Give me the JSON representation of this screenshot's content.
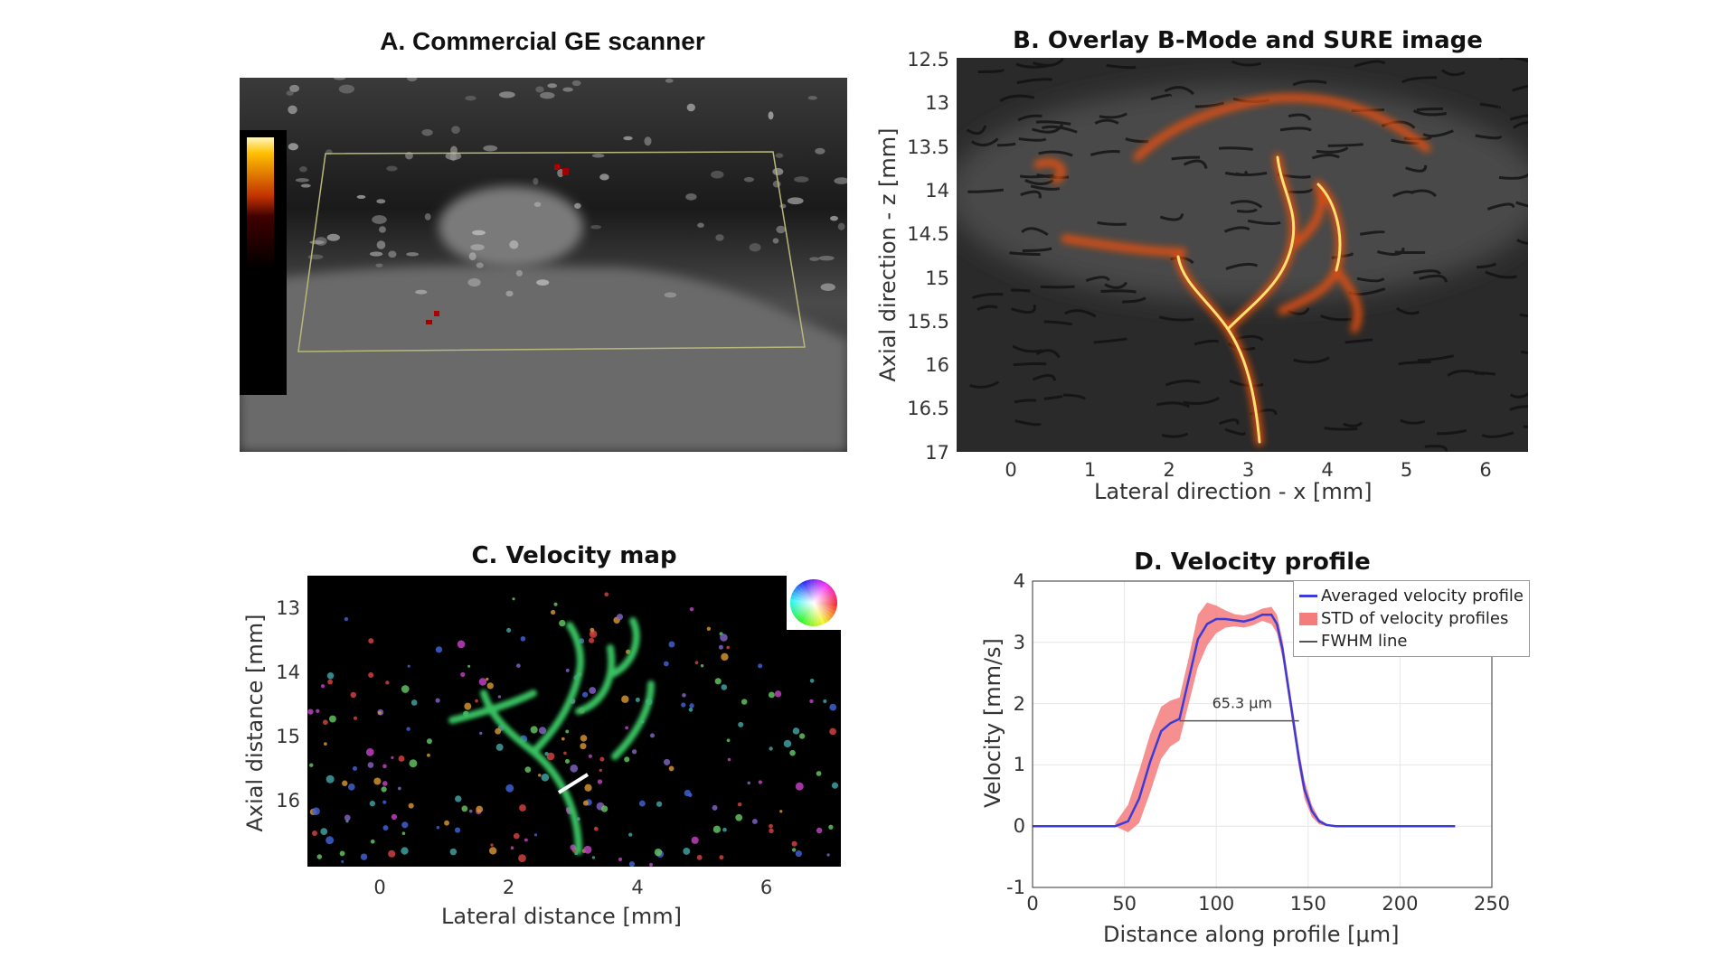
{
  "panel_a": {
    "title": "A. Commercial GE scanner"
  },
  "panel_b": {
    "title": "B. Overlay B-Mode and SURE image",
    "xlabel": "Lateral direction - x [mm]",
    "ylabel": "Axial direction - z [mm]",
    "x_ticks": [
      "0",
      "1",
      "2",
      "3",
      "4",
      "5",
      "6"
    ],
    "y_ticks": [
      "12.5",
      "13",
      "13.5",
      "14",
      "14.5",
      "15",
      "15.5",
      "16",
      "16.5",
      "17"
    ]
  },
  "panel_c": {
    "title": "C. Velocity map",
    "xlabel": "Lateral distance [mm]",
    "ylabel": "Axial distance [mm]",
    "x_ticks": [
      "0",
      "2",
      "4",
      "6"
    ],
    "y_ticks": [
      "13",
      "14",
      "15",
      "16"
    ]
  },
  "chart_data": {
    "type": "line",
    "title": "D. Velocity profile",
    "xlabel": "Distance along profile [μm]",
    "ylabel": "Velocity [mm/s]",
    "xlim": [
      0,
      250
    ],
    "ylim": [
      -1,
      4
    ],
    "x_ticks": [
      "0",
      "50",
      "100",
      "150",
      "200",
      "250"
    ],
    "y_ticks": [
      "-1",
      "0",
      "1",
      "2",
      "3",
      "4"
    ],
    "grid": true,
    "legend_position": "top-right",
    "annotation": "65.3 μm",
    "fwhm": {
      "x_start": 80,
      "x_end": 145,
      "y": 1.72
    },
    "series": [
      {
        "name": "Averaged velocity profile",
        "color": "#3b3bd6",
        "x": [
          0,
          45,
          52,
          58,
          64,
          70,
          75,
          80,
          85,
          90,
          95,
          100,
          105,
          110,
          115,
          120,
          125,
          130,
          133,
          136,
          139,
          142,
          145,
          148,
          152,
          156,
          160,
          165,
          230
        ],
        "y": [
          0,
          0,
          0.08,
          0.45,
          1.05,
          1.55,
          1.68,
          1.75,
          2.4,
          3.05,
          3.3,
          3.38,
          3.38,
          3.36,
          3.34,
          3.38,
          3.45,
          3.45,
          3.3,
          2.9,
          2.3,
          1.7,
          1.1,
          0.6,
          0.25,
          0.08,
          0.02,
          0,
          0
        ]
      },
      {
        "name": "STD of velocity profiles",
        "color": "#f47c7c",
        "x": [
          45,
          52,
          58,
          64,
          70,
          75,
          80,
          85,
          90,
          95,
          100,
          105,
          110,
          115,
          120,
          125,
          130,
          133,
          136,
          139,
          142,
          145,
          148,
          152,
          156,
          160,
          165
        ],
        "upper": [
          0.05,
          0.35,
          0.9,
          1.5,
          1.95,
          2.05,
          2.1,
          2.75,
          3.45,
          3.65,
          3.6,
          3.52,
          3.46,
          3.44,
          3.48,
          3.55,
          3.58,
          3.45,
          3.05,
          2.45,
          1.85,
          1.25,
          0.75,
          0.35,
          0.12,
          0.04,
          0.01
        ],
        "lower": [
          0,
          -0.1,
          0.05,
          0.55,
          1.1,
          1.3,
          1.4,
          2.0,
          2.6,
          2.95,
          3.15,
          3.24,
          3.26,
          3.24,
          3.28,
          3.35,
          3.3,
          3.15,
          2.75,
          2.15,
          1.55,
          0.95,
          0.45,
          0.15,
          0.03,
          0,
          0
        ]
      },
      {
        "name": "FWHM line",
        "color": "#555555"
      }
    ]
  }
}
